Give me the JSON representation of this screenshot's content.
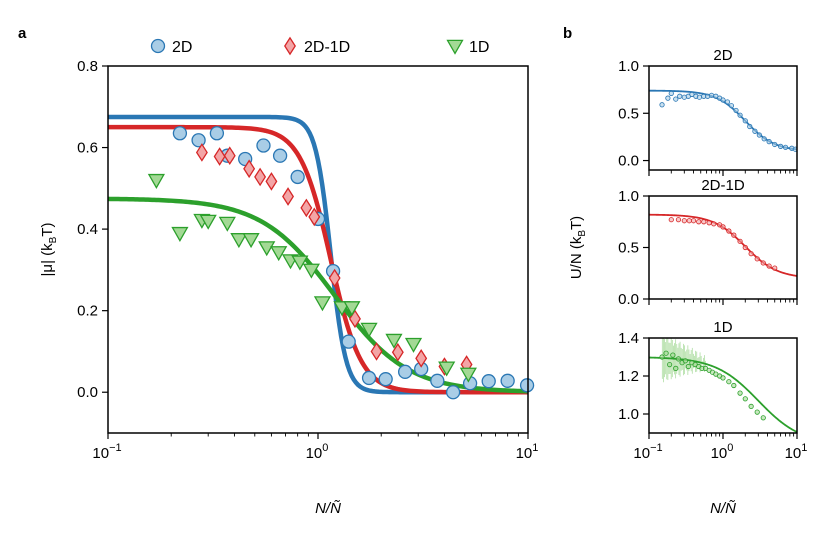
{
  "panels": {
    "a": "a",
    "b": "b"
  },
  "chart_data": [
    {
      "type": "scatter",
      "panel": "a",
      "xscale": "log",
      "xlim": [
        0.1,
        10
      ],
      "ylim": [
        -0.1,
        0.8
      ],
      "xlabel": "N/Ñ",
      "ylabel": "|μ| (k",
      "ylabel_sub": "B",
      "ylabel_end": "T)",
      "yticks": [
        0.0,
        0.2,
        0.4,
        0.6,
        0.8
      ],
      "ytick_labels": [
        "0.0",
        "0.2",
        "0.4",
        "0.6",
        "0.8"
      ],
      "xticks": [
        {
          "value": 0.1,
          "base": "10",
          "exp": "−1"
        },
        {
          "value": 1,
          "base": "10",
          "exp": "0"
        },
        {
          "value": 10,
          "base": "10",
          "exp": "1"
        }
      ],
      "legend_position": "top",
      "series": [
        {
          "name": "2D",
          "marker": "circle",
          "fill": "#a9cde6",
          "stroke": "#2a77b4",
          "points": [
            [
              0.22,
              0.635
            ],
            [
              0.27,
              0.618
            ],
            [
              0.33,
              0.635
            ],
            [
              0.37,
              0.58
            ],
            [
              0.45,
              0.572
            ],
            [
              0.55,
              0.605
            ],
            [
              0.66,
              0.58
            ],
            [
              0.8,
              0.528
            ],
            [
              1.0,
              0.425
            ],
            [
              1.18,
              0.297
            ],
            [
              1.4,
              0.124
            ],
            [
              1.75,
              0.035
            ],
            [
              2.1,
              0.032
            ],
            [
              2.6,
              0.05
            ],
            [
              3.1,
              0.057
            ],
            [
              3.7,
              0.028
            ],
            [
              4.4,
              0.0
            ],
            [
              5.3,
              0.022
            ],
            [
              6.5,
              0.027
            ],
            [
              8.0,
              0.028
            ],
            [
              9.9,
              0.017
            ]
          ],
          "fit": {
            "a": 0.675,
            "n0": 1.15,
            "k": 12
          }
        },
        {
          "name": "2D-1D",
          "marker": "diamond",
          "fill": "#f3a5a6",
          "stroke": "#d62728",
          "points": [
            [
              0.28,
              0.588
            ],
            [
              0.34,
              0.578
            ],
            [
              0.38,
              0.58
            ],
            [
              0.47,
              0.548
            ],
            [
              0.53,
              0.528
            ],
            [
              0.6,
              0.517
            ],
            [
              0.72,
              0.48
            ],
            [
              0.88,
              0.452
            ],
            [
              0.96,
              0.43
            ],
            [
              1.2,
              0.28
            ],
            [
              1.5,
              0.18
            ],
            [
              1.9,
              0.1
            ],
            [
              2.4,
              0.098
            ],
            [
              3.1,
              0.083
            ],
            [
              4.0,
              0.063
            ],
            [
              5.1,
              0.068
            ]
          ],
          "fit": {
            "a": 0.65,
            "n0": 1.15,
            "k": 6
          }
        },
        {
          "name": "1D",
          "marker": "triangle-down",
          "fill": "#a3d995",
          "stroke": "#2ca02c",
          "points": [
            [
              0.17,
              0.52
            ],
            [
              0.22,
              0.39
            ],
            [
              0.28,
              0.422
            ],
            [
              0.3,
              0.42
            ],
            [
              0.37,
              0.415
            ],
            [
              0.42,
              0.375
            ],
            [
              0.48,
              0.375
            ],
            [
              0.57,
              0.355
            ],
            [
              0.65,
              0.343
            ],
            [
              0.74,
              0.323
            ],
            [
              0.82,
              0.32
            ],
            [
              0.93,
              0.3
            ],
            [
              1.05,
              0.22
            ],
            [
              1.3,
              0.208
            ],
            [
              1.45,
              0.208
            ],
            [
              1.75,
              0.155
            ],
            [
              2.3,
              0.128
            ],
            [
              2.85,
              0.118
            ],
            [
              4.1,
              0.06
            ],
            [
              5.2,
              0.045
            ]
          ],
          "fit": {
            "a": 0.475,
            "n0": 1.2,
            "k": 2.5
          }
        }
      ]
    },
    {
      "type": "scatter",
      "panel": "b",
      "title": "2D",
      "xscale": "log",
      "xlim": [
        0.1,
        10
      ],
      "ylim": [
        -0.1,
        1.0
      ],
      "yticks": [
        0.0,
        0.5,
        1.0
      ],
      "ytick_labels": [
        "0.0",
        "0.5",
        "1.0"
      ],
      "color": "#2a77b4",
      "fill": "#a9cde6",
      "points": [
        [
          0.15,
          0.59
        ],
        [
          0.18,
          0.66
        ],
        [
          0.2,
          0.71
        ],
        [
          0.23,
          0.65
        ],
        [
          0.26,
          0.68
        ],
        [
          0.3,
          0.67
        ],
        [
          0.34,
          0.68
        ],
        [
          0.38,
          0.7
        ],
        [
          0.43,
          0.68
        ],
        [
          0.48,
          0.67
        ],
        [
          0.55,
          0.68
        ],
        [
          0.62,
          0.68
        ],
        [
          0.7,
          0.69
        ],
        [
          0.8,
          0.68
        ],
        [
          0.9,
          0.66
        ],
        [
          1.0,
          0.64
        ],
        [
          1.15,
          0.62
        ],
        [
          1.3,
          0.58
        ],
        [
          1.5,
          0.53
        ],
        [
          1.7,
          0.48
        ],
        [
          2.0,
          0.42
        ],
        [
          2.3,
          0.36
        ],
        [
          2.7,
          0.31
        ],
        [
          3.1,
          0.27
        ],
        [
          3.6,
          0.23
        ],
        [
          4.2,
          0.2
        ],
        [
          5.0,
          0.17
        ],
        [
          6.0,
          0.15
        ],
        [
          7.0,
          0.14
        ],
        [
          8.5,
          0.13
        ],
        [
          9.5,
          0.12
        ]
      ],
      "fit": {
        "a": 0.74,
        "b": 0.1,
        "n0": 2.0,
        "k": 2.2
      }
    },
    {
      "type": "scatter",
      "panel": "b",
      "title": "2D-1D",
      "xscale": "log",
      "xlim": [
        0.1,
        10
      ],
      "ylim": [
        0.0,
        1.0
      ],
      "yticks": [
        0.0,
        0.5,
        1.0
      ],
      "ytick_labels": [
        "0.0",
        "0.5",
        "1.0"
      ],
      "ylabel": "U/N (k",
      "ylabel_sub": "B",
      "ylabel_end": "T)",
      "color": "#d62728",
      "fill": "#f3a5a6",
      "points": [
        [
          0.2,
          0.77
        ],
        [
          0.25,
          0.77
        ],
        [
          0.3,
          0.76
        ],
        [
          0.35,
          0.76
        ],
        [
          0.4,
          0.76
        ],
        [
          0.47,
          0.75
        ],
        [
          0.55,
          0.75
        ],
        [
          0.65,
          0.74
        ],
        [
          0.75,
          0.73
        ],
        [
          0.9,
          0.72
        ],
        [
          1.0,
          0.7
        ],
        [
          1.2,
          0.66
        ],
        [
          1.4,
          0.62
        ],
        [
          1.7,
          0.56
        ],
        [
          2.0,
          0.5
        ],
        [
          2.4,
          0.44
        ],
        [
          2.9,
          0.39
        ],
        [
          3.5,
          0.35
        ],
        [
          4.2,
          0.32
        ],
        [
          5.0,
          0.3
        ]
      ],
      "fit": {
        "a": 0.82,
        "b": 0.2,
        "n0": 2.0,
        "k": 2.0
      }
    },
    {
      "type": "scatter",
      "panel": "b",
      "title": "1D",
      "xscale": "log",
      "xlim": [
        0.1,
        10
      ],
      "ylim": [
        0.9,
        1.4
      ],
      "yticks": [
        1.0,
        1.2,
        1.4
      ],
      "ytick_labels": [
        "1.0",
        "1.2",
        "1.4"
      ],
      "xlabel": "N/Ñ",
      "xticks": [
        {
          "value": 0.1,
          "base": "10",
          "exp": "−1"
        },
        {
          "value": 1,
          "base": "10",
          "exp": "0"
        },
        {
          "value": 10,
          "base": "10",
          "exp": "1"
        }
      ],
      "color": "#2ca02c",
      "fill": "#a3d995",
      "points": [
        [
          0.15,
          1.3
        ],
        [
          0.17,
          1.32
        ],
        [
          0.19,
          1.26
        ],
        [
          0.21,
          1.31
        ],
        [
          0.23,
          1.24
        ],
        [
          0.25,
          1.29
        ],
        [
          0.28,
          1.27
        ],
        [
          0.31,
          1.28
        ],
        [
          0.34,
          1.25
        ],
        [
          0.38,
          1.27
        ],
        [
          0.42,
          1.26
        ],
        [
          0.47,
          1.25
        ],
        [
          0.52,
          1.24
        ],
        [
          0.58,
          1.24
        ],
        [
          0.65,
          1.23
        ],
        [
          0.72,
          1.22
        ],
        [
          0.8,
          1.21
        ],
        [
          0.9,
          1.2
        ],
        [
          1.0,
          1.19
        ],
        [
          1.2,
          1.17
        ],
        [
          1.4,
          1.15
        ],
        [
          1.7,
          1.11
        ],
        [
          2.0,
          1.08
        ],
        [
          2.4,
          1.04
        ],
        [
          2.9,
          1.01
        ],
        [
          3.5,
          0.98
        ]
      ],
      "error_bar_count": 40,
      "fit": {
        "a": 1.3,
        "b": 0.84,
        "n0": 3.0,
        "k": 1.5
      }
    }
  ]
}
